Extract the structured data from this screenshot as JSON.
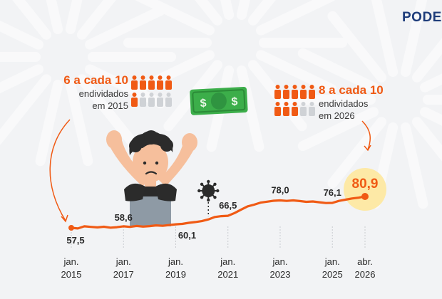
{
  "brand": {
    "name": "PODER"
  },
  "callouts": {
    "start": {
      "ratio": "6 a cada 10",
      "line1": "endividados",
      "line2": "em 2015",
      "filled": 6,
      "total": 10
    },
    "end": {
      "ratio": "8 a cada 10",
      "line1": "endividados",
      "line2": "em 2026",
      "filled": 8,
      "total": 10
    }
  },
  "colors": {
    "accent": "#f05a14",
    "people_inactive": "#cfd2d6",
    "highlight": "#fde9a6",
    "money": "#3cae4a"
  },
  "icons": [
    "money-bill-icon",
    "virus-icon",
    "person-icon",
    "worried-man-illustration"
  ],
  "chart_data": {
    "type": "line",
    "title": "",
    "xlabel": "",
    "ylabel": "",
    "x_ticks": [
      {
        "t": 2015.0,
        "l1": "jan.",
        "l2": "2015"
      },
      {
        "t": 2017.0,
        "l1": "jan.",
        "l2": "2017"
      },
      {
        "t": 2019.0,
        "l1": "jan.",
        "l2": "2019"
      },
      {
        "t": 2021.0,
        "l1": "jan.",
        "l2": "2021"
      },
      {
        "t": 2023.0,
        "l1": "jan.",
        "l2": "2023"
      },
      {
        "t": 2025.0,
        "l1": "jan.",
        "l2": "2025"
      },
      {
        "t": 2026.25,
        "l1": "abr.",
        "l2": "2026"
      }
    ],
    "labeled_points": [
      {
        "t": 2015.0,
        "value": 57.5,
        "label": "57,5"
      },
      {
        "t": 2017.0,
        "value": 58.6,
        "label": "58,6"
      },
      {
        "t": 2019.0,
        "value": 60.1,
        "label": "60,1"
      },
      {
        "t": 2021.0,
        "value": 66.5,
        "label": "66,5"
      },
      {
        "t": 2023.0,
        "value": 78.0,
        "label": "78,0"
      },
      {
        "t": 2025.0,
        "value": 76.1,
        "label": "76,1"
      },
      {
        "t": 2026.25,
        "value": 80.9,
        "label": "80,9"
      }
    ],
    "series": [
      {
        "points": [
          [
            2015.0,
            57.5
          ],
          [
            2015.25,
            57.0
          ],
          [
            2015.5,
            58.6
          ],
          [
            2015.75,
            58.2
          ],
          [
            2016.0,
            57.8
          ],
          [
            2016.25,
            58.3
          ],
          [
            2016.5,
            57.6
          ],
          [
            2016.75,
            58.0
          ],
          [
            2017.0,
            58.6
          ],
          [
            2017.25,
            58.2
          ],
          [
            2017.5,
            58.9
          ],
          [
            2017.75,
            58.4
          ],
          [
            2018.0,
            58.8
          ],
          [
            2018.25,
            59.3
          ],
          [
            2018.5,
            59.0
          ],
          [
            2018.75,
            59.6
          ],
          [
            2019.0,
            60.1
          ],
          [
            2019.25,
            60.4
          ],
          [
            2019.5,
            61.2
          ],
          [
            2019.75,
            61.8
          ],
          [
            2020.0,
            62.5
          ],
          [
            2020.25,
            63.8
          ],
          [
            2020.5,
            65.6
          ],
          [
            2020.75,
            66.2
          ],
          [
            2021.0,
            66.5
          ],
          [
            2021.25,
            68.5
          ],
          [
            2021.5,
            71.0
          ],
          [
            2021.75,
            73.5
          ],
          [
            2022.0,
            74.8
          ],
          [
            2022.25,
            76.3
          ],
          [
            2022.5,
            77.0
          ],
          [
            2022.75,
            77.7
          ],
          [
            2023.0,
            78.0
          ],
          [
            2023.25,
            77.6
          ],
          [
            2023.5,
            78.0
          ],
          [
            2023.75,
            77.5
          ],
          [
            2024.0,
            76.9
          ],
          [
            2024.25,
            77.2
          ],
          [
            2024.5,
            76.6
          ],
          [
            2024.75,
            76.0
          ],
          [
            2025.0,
            76.1
          ],
          [
            2025.25,
            77.6
          ],
          [
            2025.5,
            78.5
          ],
          [
            2025.75,
            79.4
          ],
          [
            2026.0,
            80.0
          ],
          [
            2026.25,
            80.9
          ]
        ]
      }
    ],
    "annotations": [
      {
        "t": 2020.25,
        "icon": "virus-icon"
      }
    ],
    "highlight": "80,9",
    "grid": false,
    "legend": "none"
  }
}
